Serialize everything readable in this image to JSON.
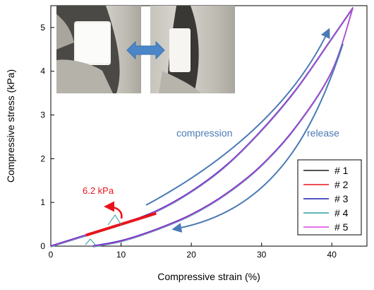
{
  "chart_data": {
    "type": "line",
    "xlabel": "Compressive strain (%)",
    "ylabel": "Compressive stress (kPa)",
    "xlim": [
      0,
      45
    ],
    "ylim": [
      0,
      5.5
    ],
    "xticks": [
      0,
      10,
      20,
      30,
      40
    ],
    "yticks": [
      0,
      1,
      2,
      3,
      4,
      5
    ],
    "grid": false,
    "legend_position": "bottom-right",
    "series": [
      {
        "name": "# 1",
        "color": "#1a1a1a",
        "loading": {
          "x": [
            0,
            5,
            10,
            15,
            20,
            25,
            30,
            35,
            40,
            43
          ],
          "y": [
            0,
            0.25,
            0.5,
            0.8,
            1.25,
            1.85,
            2.65,
            3.6,
            4.75,
            5.45
          ]
        },
        "unloading": {
          "x": [
            6,
            10,
            15,
            20,
            25,
            30,
            35,
            40,
            43
          ],
          "y": [
            0,
            0.12,
            0.38,
            0.72,
            1.2,
            1.85,
            2.75,
            4.0,
            5.45
          ]
        }
      },
      {
        "name": "# 2",
        "color": "#e8141b",
        "loading": {
          "x": [
            0,
            5,
            10,
            15,
            20,
            25,
            30,
            35,
            40,
            43
          ],
          "y": [
            0,
            0.25,
            0.5,
            0.8,
            1.25,
            1.85,
            2.65,
            3.6,
            4.75,
            5.45
          ]
        },
        "unloading": {
          "x": [
            6,
            10,
            15,
            20,
            25,
            30,
            35,
            40,
            43
          ],
          "y": [
            0,
            0.12,
            0.38,
            0.72,
            1.2,
            1.85,
            2.75,
            4.0,
            5.45
          ]
        }
      },
      {
        "name": "# 3",
        "color": "#1a1ab0",
        "loading": {
          "x": [
            0,
            5,
            10,
            15,
            20,
            25,
            30,
            35,
            40,
            43
          ],
          "y": [
            0,
            0.25,
            0.5,
            0.8,
            1.25,
            1.85,
            2.65,
            3.6,
            4.75,
            5.45
          ]
        },
        "unloading": {
          "x": [
            6,
            10,
            15,
            20,
            25,
            30,
            35,
            40,
            43
          ],
          "y": [
            0,
            0.12,
            0.38,
            0.72,
            1.2,
            1.85,
            2.75,
            4.0,
            5.45
          ]
        }
      },
      {
        "name": "# 4",
        "color": "#2a9d9d",
        "loading": {
          "x": [
            0,
            5,
            10,
            15,
            20,
            25,
            30,
            35,
            40,
            43
          ],
          "y": [
            0,
            0.25,
            0.5,
            0.8,
            1.25,
            1.85,
            2.65,
            3.6,
            4.75,
            5.45
          ]
        },
        "unloading": {
          "x": [
            6,
            10,
            15,
            20,
            25,
            30,
            35,
            40,
            43
          ],
          "y": [
            0,
            0.12,
            0.38,
            0.72,
            1.2,
            1.85,
            2.75,
            4.0,
            5.45
          ]
        }
      },
      {
        "name": "# 5",
        "color": "#e040e0",
        "loading": {
          "x": [
            0,
            5,
            10,
            15,
            20,
            25,
            30,
            35,
            40,
            43
          ],
          "y": [
            0,
            0.25,
            0.5,
            0.8,
            1.25,
            1.85,
            2.65,
            3.6,
            4.75,
            5.45
          ]
        },
        "unloading": {
          "x": [
            6,
            10,
            15,
            20,
            25,
            30,
            35,
            40,
            43
          ],
          "y": [
            0,
            0.12,
            0.38,
            0.72,
            1.2,
            1.85,
            2.75,
            4.0,
            5.45
          ]
        }
      }
    ],
    "annotations": [
      {
        "text": "compression",
        "color": "#4a7ab5"
      },
      {
        "text": "release",
        "color": "#4a7ab5"
      },
      {
        "text": "6.2 kPa",
        "color": "#e8141b"
      }
    ],
    "slope_line": {
      "x": [
        5,
        15
      ],
      "y": [
        0.25,
        0.75
      ],
      "color": "#e8141b"
    }
  },
  "colors": {
    "annotation_blue": "#4a7ab5",
    "annotation_red": "#e8141b"
  },
  "inset": {
    "description_icons": [
      "foam-uncompressed-photo",
      "double-arrow-icon",
      "foam-compressed-photo"
    ]
  }
}
